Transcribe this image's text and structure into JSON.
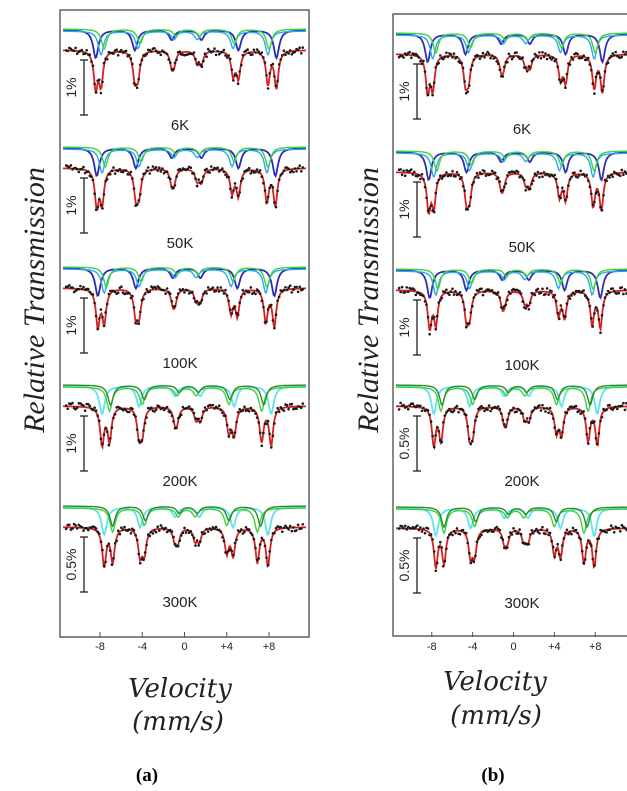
{
  "figure": {
    "y_axis_label": "Relative Transmission",
    "x_axis_label_line1": "Velocity",
    "x_axis_label_line2": "(mm/s)"
  },
  "chart_data": [
    {
      "type": "line",
      "caption": "(a)",
      "xlabel": "Velocity (mm/s)",
      "ylabel": "Relative Transmission",
      "x_ticks": [
        "-8",
        "-4",
        "0",
        "+4",
        "+8"
      ],
      "xlim": [
        -11.5,
        11.5
      ],
      "colors": {
        "total_fit": "#d42020",
        "data": "#1a1a1a",
        "sextet_dark": "#2a2ab8",
        "sextet_light": "#2aa8ee",
        "sextet_green": "#3fcf3f",
        "sextet_olive": "#2d8a2d",
        "sextet_cyan": "#5fe3f0"
      },
      "spectra": [
        {
          "temperature": "6K",
          "scale_bar": "1%",
          "lines": [
            -8.4,
            -4.7,
            -1.2,
            1.6,
            5.1,
            8.7,
            -7.9,
            -4.4,
            -1.0,
            1.2,
            4.6,
            7.9
          ]
        },
        {
          "temperature": "50K",
          "scale_bar": "1%",
          "lines": [
            -8.3,
            -4.6,
            -1.2,
            1.6,
            5.1,
            8.6,
            -7.8,
            -4.3,
            -1.0,
            1.2,
            4.5,
            7.8
          ]
        },
        {
          "temperature": "100K",
          "scale_bar": "1%",
          "lines": [
            -8.2,
            -4.6,
            -1.1,
            1.5,
            5.0,
            8.5,
            -7.6,
            -4.3,
            -0.9,
            1.1,
            4.4,
            7.7
          ]
        },
        {
          "temperature": "200K",
          "scale_bar": "1%",
          "lines": [
            -7.8,
            -4.3,
            -0.9,
            1.5,
            4.7,
            8.2,
            -7.1,
            -4.0,
            -0.7,
            1.1,
            4.2,
            7.3
          ]
        },
        {
          "temperature": "300K",
          "scale_bar": "0.5%",
          "lines": [
            -7.6,
            -4.2,
            -0.9,
            1.4,
            4.6,
            7.9,
            -6.8,
            -3.8,
            -0.6,
            1.0,
            4.0,
            6.9
          ]
        }
      ]
    },
    {
      "type": "line",
      "caption": "(b)",
      "xlabel": "Velocity (mm/s)",
      "ylabel": "Relative Transmission",
      "x_ticks": [
        "-8",
        "-4",
        "0",
        "+4",
        "+8"
      ],
      "xlim": [
        -11.5,
        11.5
      ],
      "colors": {
        "total_fit": "#d42020",
        "data": "#1a1a1a",
        "sextet_dark": "#3030b0",
        "sextet_light": "#2aa8ee",
        "sextet_green": "#3fcf3f",
        "sextet_olive": "#2d8a2d",
        "sextet_cyan": "#5fe3f0"
      },
      "spectra": [
        {
          "temperature": "6K",
          "scale_bar": "1%",
          "lines": [
            -8.4,
            -4.7,
            -1.2,
            1.6,
            5.1,
            8.7,
            -7.9,
            -4.4,
            -1.0,
            1.2,
            4.6,
            7.9
          ]
        },
        {
          "temperature": "50K",
          "scale_bar": "1%",
          "lines": [
            -8.3,
            -4.6,
            -1.2,
            1.6,
            5.1,
            8.6,
            -7.8,
            -4.3,
            -1.0,
            1.2,
            4.5,
            7.8
          ]
        },
        {
          "temperature": "100K",
          "scale_bar": "1%",
          "lines": [
            -8.2,
            -4.6,
            -1.1,
            1.5,
            5.0,
            8.5,
            -7.6,
            -4.3,
            -0.9,
            1.1,
            4.4,
            7.7
          ]
        },
        {
          "temperature": "200K",
          "scale_bar": "0.5%",
          "lines": [
            -7.8,
            -4.3,
            -0.9,
            1.5,
            4.7,
            8.2,
            -7.1,
            -4.0,
            -0.7,
            1.1,
            4.2,
            7.3
          ]
        },
        {
          "temperature": "300K",
          "scale_bar": "0.5%",
          "lines": [
            -7.6,
            -4.2,
            -0.9,
            1.4,
            4.6,
            7.9,
            -6.8,
            -3.8,
            -0.6,
            1.0,
            4.0,
            6.9
          ]
        }
      ]
    }
  ]
}
